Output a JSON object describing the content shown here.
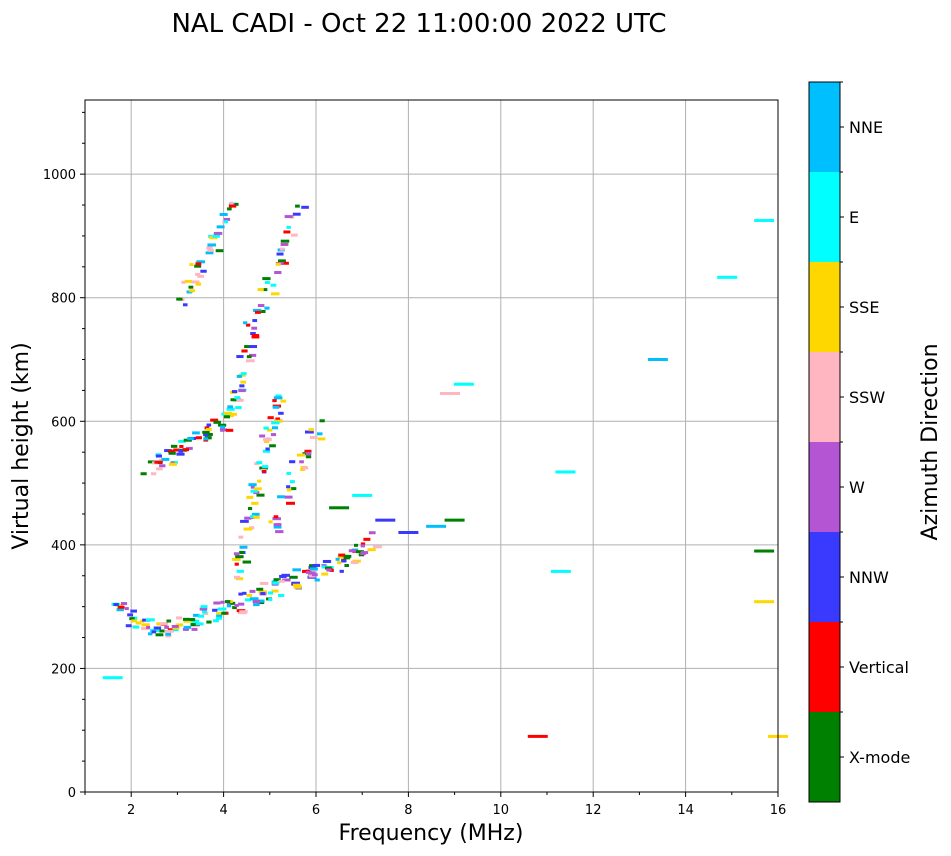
{
  "chart_data": {
    "type": "scatter",
    "title": "NAL CADI - Oct 22 11:00:00 2022 UTC",
    "xlabel": "Frequency (MHz)",
    "ylabel": "Virtual height (km)",
    "xlim": [
      1,
      16
    ],
    "ylim": [
      0,
      1120
    ],
    "xticks": [
      2,
      4,
      6,
      8,
      10,
      12,
      14,
      16
    ],
    "yticks": [
      0,
      200,
      400,
      600,
      800,
      1000
    ],
    "grid": true,
    "colorbar": {
      "title": "Azimuth Direction",
      "categories": [
        {
          "name": "X-mode",
          "color": "#008000"
        },
        {
          "name": "Vertical",
          "color": "#ff0000"
        },
        {
          "name": "NNW",
          "color": "#3a3aff"
        },
        {
          "name": "W",
          "color": "#b455d4"
        },
        {
          "name": "SSW",
          "color": "#ffb6c1"
        },
        {
          "name": "SSE",
          "color": "#ffd700"
        },
        {
          "name": "E",
          "color": "#00ffff"
        },
        {
          "name": "NNE",
          "color": "#00bfff"
        }
      ]
    },
    "traces": [
      {
        "name": "trace-F1",
        "points": [
          [
            1.6,
            300
          ],
          [
            1.8,
            290
          ],
          [
            2.0,
            280
          ],
          [
            2.2,
            272
          ],
          [
            2.4,
            270
          ],
          [
            2.6,
            268
          ],
          [
            2.8,
            270
          ],
          [
            3.0,
            274
          ],
          [
            3.2,
            280
          ],
          [
            3.4,
            285
          ],
          [
            3.6,
            288
          ],
          [
            3.8,
            292
          ],
          [
            4.0,
            300
          ],
          [
            4.2,
            305
          ],
          [
            4.4,
            310
          ],
          [
            4.6,
            318
          ],
          [
            4.8,
            325
          ],
          [
            5.0,
            330
          ],
          [
            5.2,
            338
          ],
          [
            5.4,
            345
          ],
          [
            5.6,
            350
          ],
          [
            5.8,
            355
          ],
          [
            6.0,
            360
          ],
          [
            6.2,
            365
          ],
          [
            6.4,
            372
          ],
          [
            6.6,
            380
          ],
          [
            6.8,
            390
          ],
          [
            7.0,
            400
          ],
          [
            7.2,
            410
          ]
        ]
      },
      {
        "name": "trace-F1-column",
        "points": [
          [
            4.2,
            340
          ],
          [
            4.3,
            380
          ],
          [
            4.4,
            420
          ],
          [
            4.5,
            450
          ],
          [
            4.6,
            480
          ],
          [
            4.7,
            510
          ],
          [
            4.8,
            540
          ],
          [
            4.9,
            570
          ],
          [
            5.0,
            600
          ],
          [
            5.1,
            620
          ],
          [
            5.2,
            640
          ]
        ]
      },
      {
        "name": "trace-F2",
        "points": [
          [
            2.3,
            530
          ],
          [
            2.5,
            532
          ],
          [
            2.7,
            538
          ],
          [
            2.9,
            545
          ],
          [
            3.1,
            555
          ],
          [
            3.3,
            565
          ],
          [
            3.5,
            575
          ],
          [
            3.7,
            585
          ],
          [
            3.9,
            595
          ],
          [
            4.1,
            610
          ],
          [
            4.2,
            630
          ],
          [
            4.3,
            660
          ],
          [
            4.4,
            700
          ],
          [
            4.5,
            740
          ],
          [
            4.6,
            780
          ]
        ]
      },
      {
        "name": "trace-F2-upper",
        "points": [
          [
            5.0,
            420
          ],
          [
            5.2,
            460
          ],
          [
            5.4,
            500
          ],
          [
            5.6,
            540
          ],
          [
            5.8,
            570
          ],
          [
            6.0,
            590
          ]
        ]
      },
      {
        "name": "trace-F3",
        "points": [
          [
            3.0,
            790
          ],
          [
            3.2,
            820
          ],
          [
            3.4,
            845
          ],
          [
            3.6,
            870
          ],
          [
            3.8,
            900
          ],
          [
            4.0,
            930
          ],
          [
            4.2,
            960
          ]
        ]
      },
      {
        "name": "trace-F3-upper",
        "points": [
          [
            4.6,
            760
          ],
          [
            4.8,
            800
          ],
          [
            5.0,
            840
          ],
          [
            5.2,
            880
          ],
          [
            5.4,
            920
          ],
          [
            5.6,
            950
          ]
        ]
      },
      {
        "name": "trace-scatter-high",
        "points": [
          [
            6.5,
            460
          ],
          [
            7.0,
            480
          ],
          [
            7.5,
            440
          ],
          [
            8.0,
            420
          ],
          [
            8.6,
            430
          ],
          [
            9.0,
            440
          ],
          [
            9.2,
            660
          ],
          [
            8.9,
            645
          ],
          [
            11.3,
            357
          ],
          [
            15.7,
            390
          ],
          [
            13.4,
            700
          ],
          [
            14.9,
            833
          ],
          [
            15.7,
            925
          ],
          [
            11.4,
            518
          ],
          [
            10.8,
            90
          ],
          [
            15.7,
            308
          ],
          [
            16.0,
            90
          ],
          [
            1.6,
            185
          ]
        ]
      }
    ]
  }
}
